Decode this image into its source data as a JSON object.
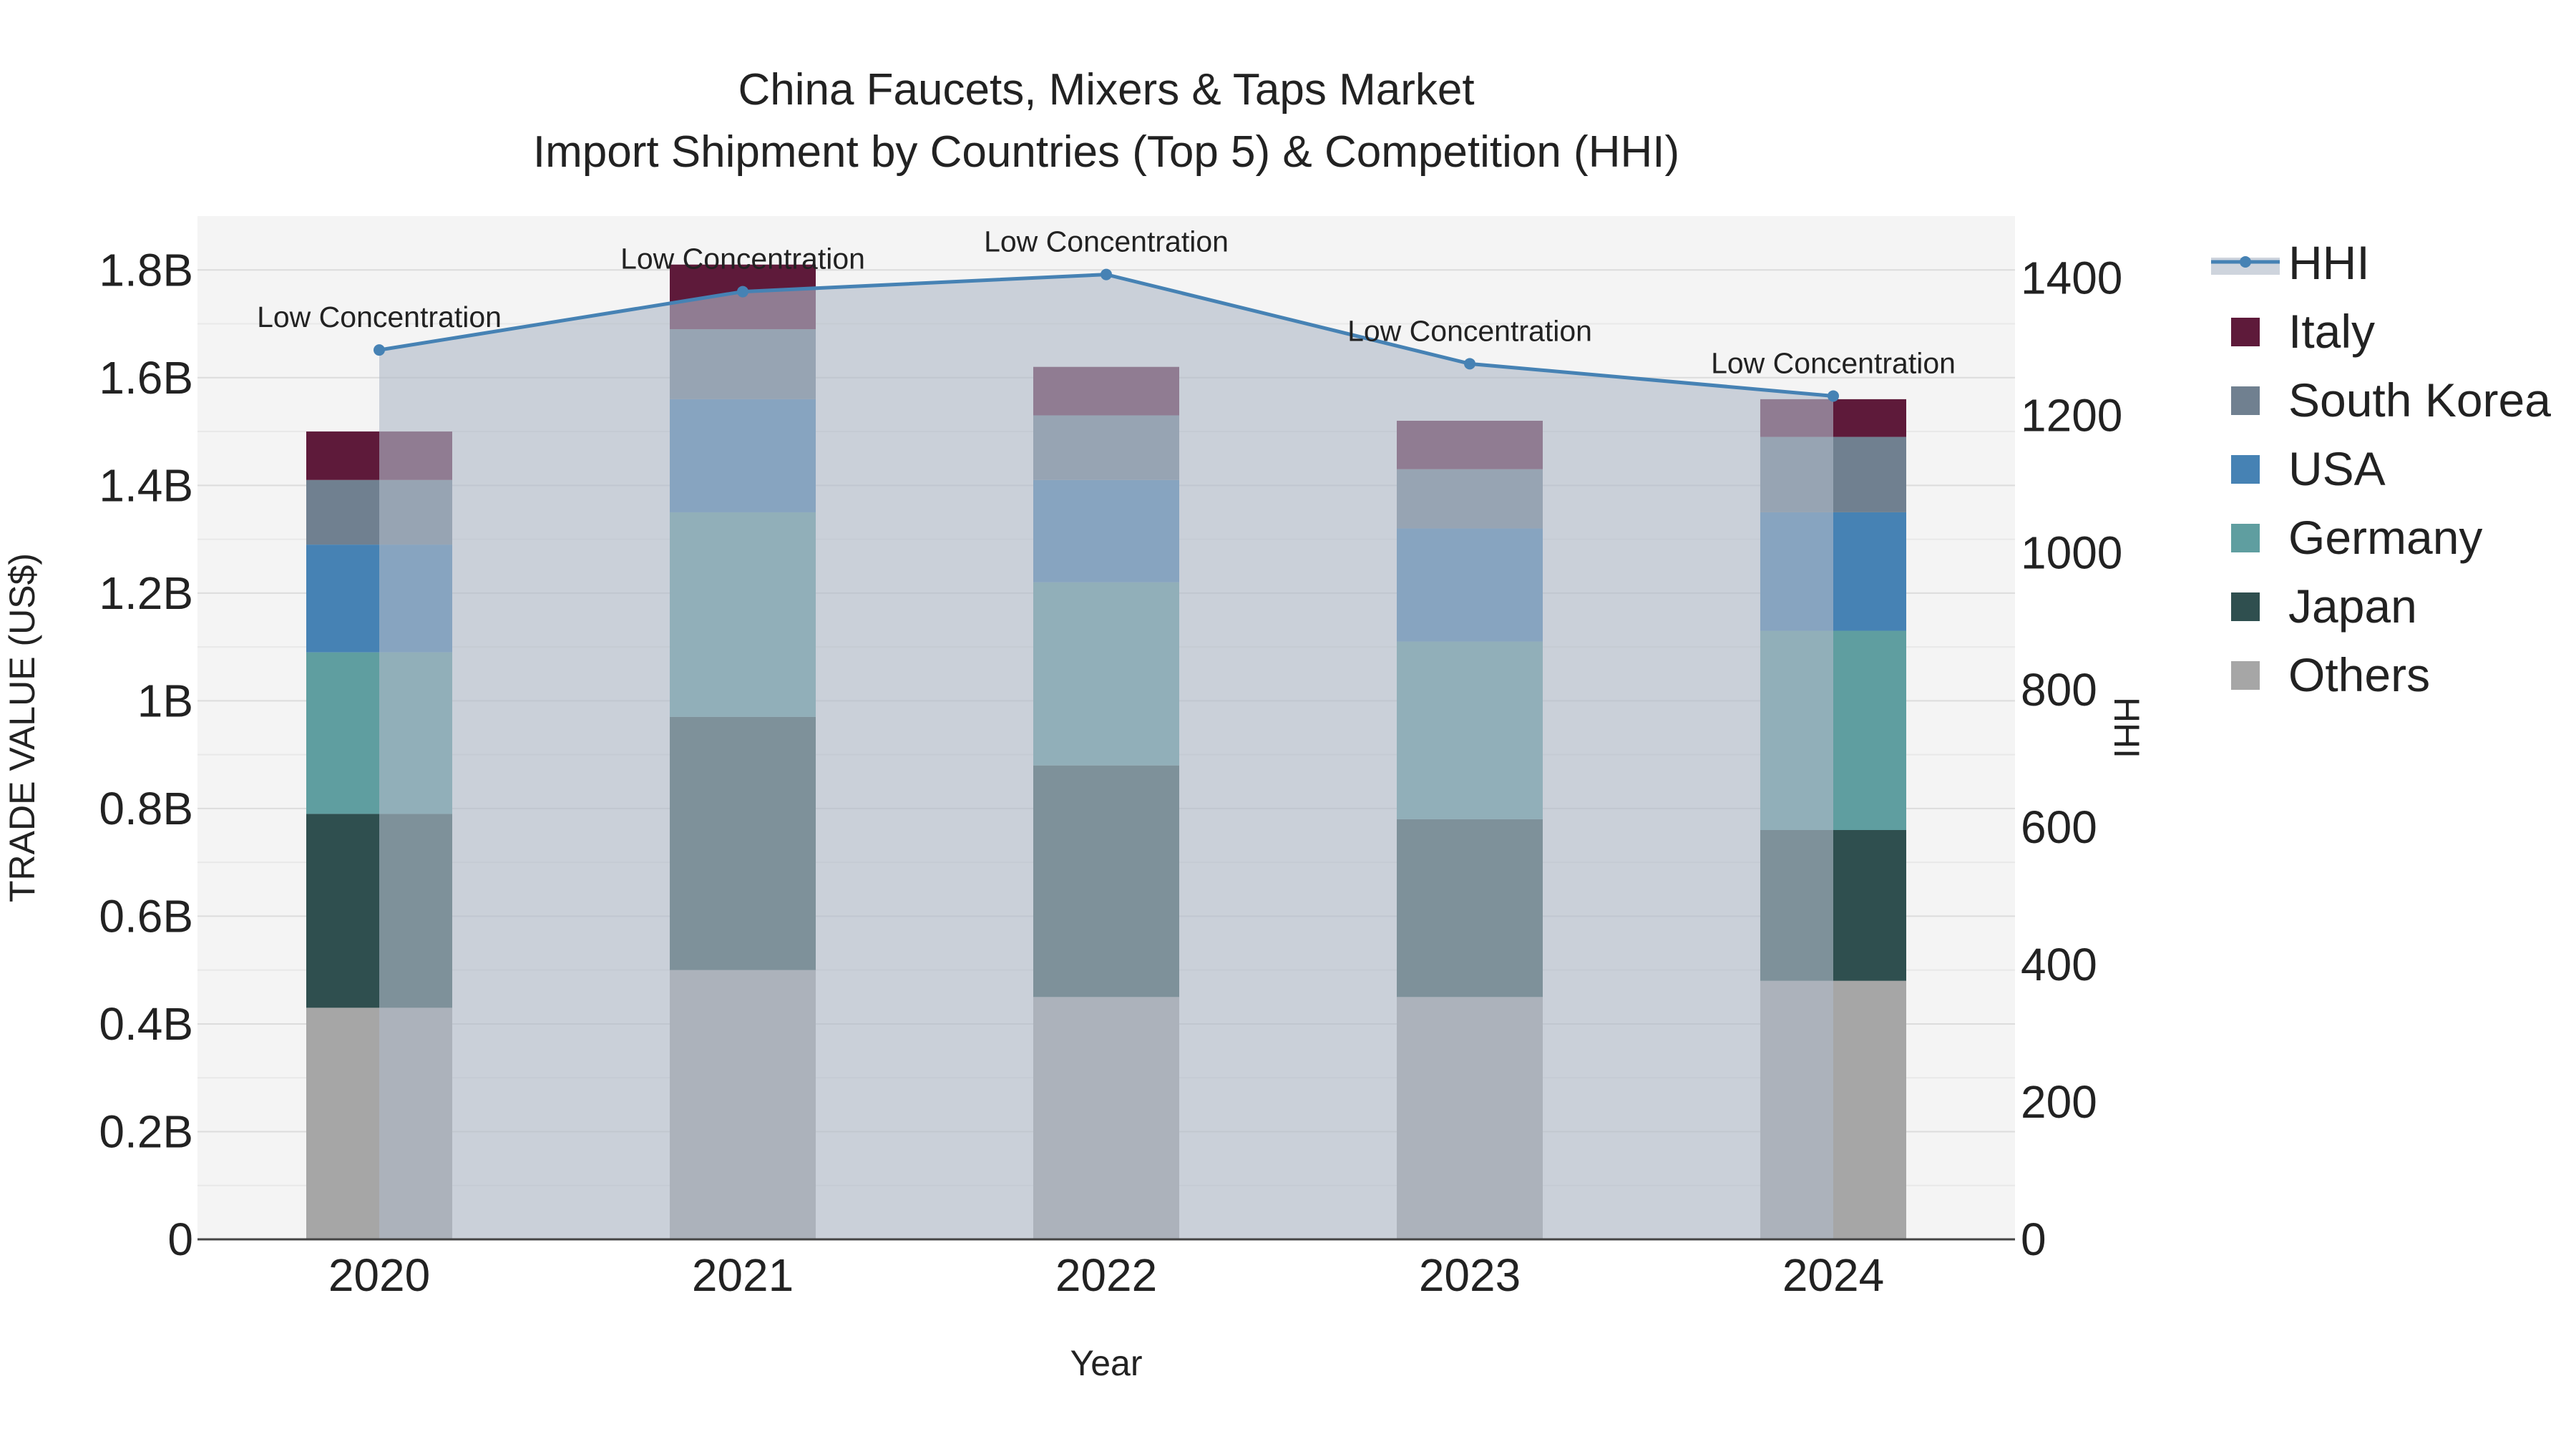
{
  "chart_data": {
    "type": "bar",
    "title": "China Faucets, Mixers & Taps Market",
    "subtitle": "Import Shipment by Countries (Top 5) & Competition (HHI)",
    "xlabel": "Year",
    "ylabel": "TRADE VALUE (US$)",
    "y2label": "HHI",
    "categories": [
      "2020",
      "2021",
      "2022",
      "2023",
      "2024"
    ],
    "stacked": true,
    "ylim": [
      0,
      1.9
    ],
    "yticks": [
      0,
      0.2,
      0.4,
      0.6,
      0.8,
      1.0,
      1.2,
      1.4,
      1.6,
      1.8
    ],
    "ytick_labels": [
      "0",
      "0.2B",
      "0.4B",
      "0.6B",
      "0.8B",
      "1B",
      "1.2B",
      "1.4B",
      "1.6B",
      "1.8B"
    ],
    "y2lim": [
      0,
      1490
    ],
    "y2ticks": [
      0,
      200,
      400,
      600,
      800,
      1000,
      1200,
      1400
    ],
    "y2tick_labels": [
      "0",
      "200",
      "400",
      "600",
      "800",
      "1000",
      "1200",
      "1400"
    ],
    "value_unit": "billion US$",
    "series": [
      {
        "name": "Others",
        "color": "#a6a6a6",
        "values": [
          0.43,
          0.5,
          0.45,
          0.45,
          0.48
        ]
      },
      {
        "name": "Japan",
        "color": "#2f4f4f",
        "values": [
          0.36,
          0.47,
          0.43,
          0.33,
          0.28
        ]
      },
      {
        "name": "Germany",
        "color": "#5f9ea0",
        "values": [
          0.3,
          0.38,
          0.34,
          0.33,
          0.37
        ]
      },
      {
        "name": "USA",
        "color": "#4682b4",
        "values": [
          0.2,
          0.21,
          0.19,
          0.21,
          0.22
        ]
      },
      {
        "name": "South Korea",
        "color": "#708090",
        "values": [
          0.12,
          0.13,
          0.12,
          0.11,
          0.14
        ]
      },
      {
        "name": "Italy",
        "color": "#5e1a3a",
        "values": [
          0.09,
          0.12,
          0.09,
          0.09,
          0.07
        ]
      }
    ],
    "hhi": {
      "name": "HHI",
      "color": "#4682b4",
      "values": [
        1295,
        1380,
        1405,
        1275,
        1228
      ],
      "annotations": [
        "Low Concentration",
        "Low Concentration",
        "Low Concentration",
        "Low Concentration",
        "Low Concentration"
      ]
    },
    "legend_position": "right",
    "legend_order": [
      "HHI",
      "Italy",
      "South Korea",
      "USA",
      "Germany",
      "Japan",
      "Others"
    ]
  }
}
